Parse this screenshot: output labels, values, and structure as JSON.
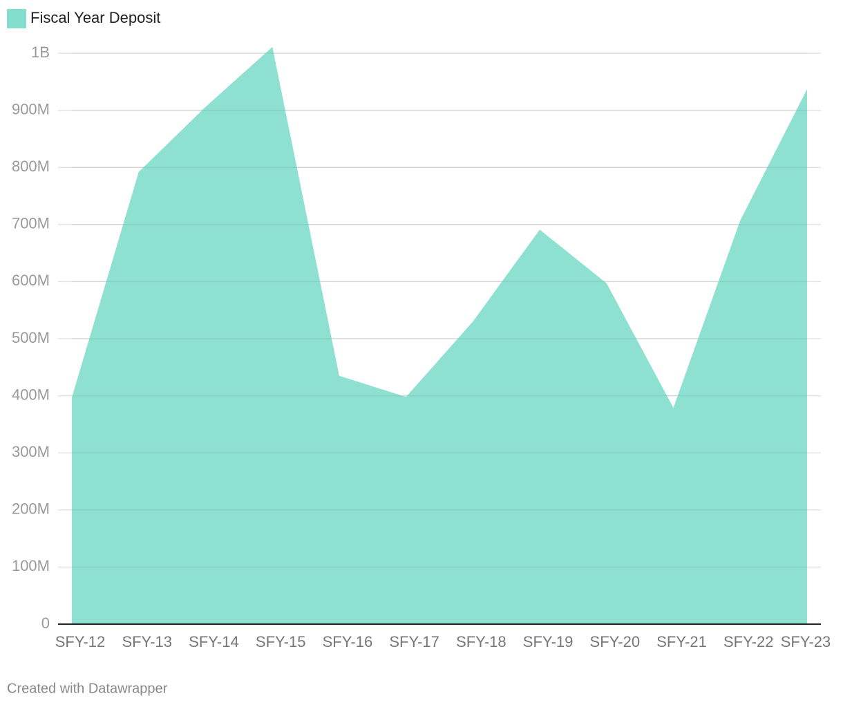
{
  "chart_data": {
    "type": "area",
    "categories": [
      "SFY-12",
      "SFY-13",
      "SFY-14",
      "SFY-15",
      "SFY-16",
      "SFY-17",
      "SFY-18",
      "SFY-19",
      "SFY-20",
      "SFY-21",
      "SFY-22",
      "SFY-23"
    ],
    "series": [
      {
        "name": "Fiscal Year Deposit",
        "color": "#84ddcd",
        "values": [
          397000000,
          792000000,
          906000000,
          1011000000,
          435000000,
          398000000,
          530000000,
          691000000,
          597000000,
          379000000,
          707000000,
          937000000
        ]
      }
    ],
    "ylim": [
      0,
      1000000000
    ],
    "yticks": [
      0,
      {
        "value": 100000000,
        "label": "100M"
      },
      {
        "value": 200000000,
        "label": "200M"
      },
      {
        "value": 300000000,
        "label": "300M"
      },
      {
        "value": 400000000,
        "label": "400M"
      },
      {
        "value": 500000000,
        "label": "500M"
      },
      {
        "value": 600000000,
        "label": "600M"
      },
      {
        "value": 700000000,
        "label": "700M"
      },
      {
        "value": 800000000,
        "label": "800M"
      },
      {
        "value": 900000000,
        "label": "900M"
      },
      {
        "value": 1000000000,
        "label": "1B"
      }
    ],
    "grid": true,
    "legend": "top-left",
    "footer": "Created with Datawrapper"
  }
}
